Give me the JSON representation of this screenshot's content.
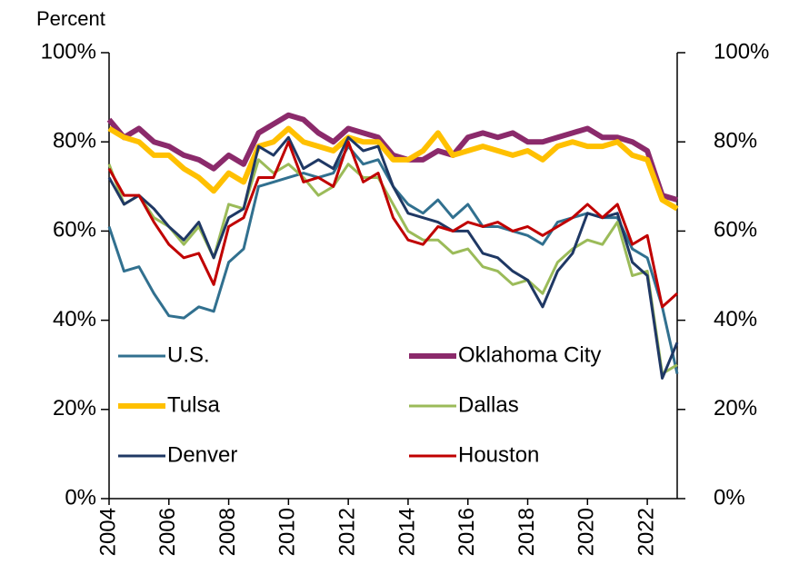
{
  "chart_data": {
    "type": "line",
    "ylabel": "Percent",
    "x": [
      2004,
      2004.5,
      2005,
      2005.5,
      2006,
      2006.5,
      2007,
      2007.5,
      2008,
      2008.5,
      2009,
      2009.5,
      2010,
      2010.5,
      2011,
      2011.5,
      2012,
      2012.5,
      2013,
      2013.5,
      2014,
      2014.5,
      2015,
      2015.5,
      2016,
      2016.5,
      2017,
      2017.5,
      2018,
      2018.5,
      2019,
      2019.5,
      2020,
      2020.5,
      2021,
      2021.5,
      2022,
      2022.5,
      2023
    ],
    "series": [
      {
        "name": "U.S.",
        "color": "#31708f",
        "width": 3,
        "values": [
          61,
          51,
          52,
          46,
          41,
          40.5,
          43,
          42,
          53,
          56,
          70,
          71,
          72,
          73,
          72,
          73,
          79,
          75,
          76,
          70,
          66,
          64,
          67,
          63,
          66,
          61,
          61,
          60,
          59,
          57,
          62,
          63,
          64,
          63,
          63,
          56,
          54,
          43,
          28
        ]
      },
      {
        "name": "Oklahoma City",
        "color": "#8b2a6b",
        "width": 6,
        "values": [
          85,
          81,
          83,
          80,
          79,
          77,
          76,
          74,
          77,
          75,
          82,
          84,
          86,
          85,
          82,
          80,
          83,
          82,
          81,
          77,
          76,
          76,
          78,
          77,
          81,
          82,
          81,
          82,
          80,
          80,
          81,
          82,
          83,
          81,
          81,
          80,
          78,
          68,
          67
        ]
      },
      {
        "name": "Tulsa",
        "color": "#ffc000",
        "width": 6,
        "values": [
          83,
          81,
          80,
          77,
          77,
          74,
          72,
          69,
          73,
          71,
          79,
          80,
          83,
          80,
          79,
          78,
          81,
          80,
          80,
          76,
          76,
          78,
          82,
          77,
          78,
          79,
          78,
          77,
          78,
          76,
          79,
          80,
          79,
          79,
          80,
          77,
          76,
          67,
          65
        ]
      },
      {
        "name": "Dallas",
        "color": "#9bbb59",
        "width": 3,
        "values": [
          75,
          66,
          68,
          63,
          61,
          57,
          61,
          54,
          66,
          65,
          76,
          73,
          75,
          72,
          68,
          70,
          75,
          72,
          72,
          66,
          60,
          58,
          58,
          55,
          56,
          52,
          51,
          48,
          49,
          46,
          53,
          56,
          58,
          57,
          62,
          50,
          51,
          28,
          30
        ]
      },
      {
        "name": "Denver",
        "color": "#1f3864",
        "width": 3,
        "values": [
          72,
          66,
          68,
          65,
          61,
          58,
          62,
          54,
          63,
          65,
          79,
          77,
          81,
          74,
          76,
          74,
          81,
          78,
          79,
          70,
          64,
          63,
          62,
          60,
          60,
          55,
          54,
          51,
          49,
          43,
          51,
          55,
          64,
          63,
          64,
          53,
          50,
          27,
          35
        ]
      },
      {
        "name": "Houston",
        "color": "#c00000",
        "width": 3,
        "values": [
          74,
          68,
          68,
          62,
          57,
          54,
          55,
          48,
          61,
          63,
          72,
          72,
          80,
          71,
          72,
          70,
          80,
          71,
          73,
          63,
          58,
          57,
          61,
          60,
          62,
          61,
          62,
          60,
          61,
          59,
          61,
          63,
          66,
          63,
          66,
          57,
          59,
          43,
          46
        ]
      }
    ],
    "xlim": [
      2004,
      2023
    ],
    "xticks": [
      2004,
      2006,
      2008,
      2010,
      2012,
      2014,
      2016,
      2018,
      2020,
      2022
    ],
    "ylim": [
      0,
      100
    ],
    "yticks": [
      {
        "value": 0,
        "label": "0%"
      },
      {
        "value": 20,
        "label": "20%"
      },
      {
        "value": 40,
        "label": "40%"
      },
      {
        "value": 60,
        "label": "60%"
      },
      {
        "value": 80,
        "label": "80%"
      },
      {
        "value": 100,
        "label": "100%"
      }
    ],
    "y2lim": [
      0,
      100
    ],
    "y2ticks": [
      {
        "value": 0,
        "label": "0%"
      },
      {
        "value": 20,
        "label": "20%"
      },
      {
        "value": 40,
        "label": "40%"
      },
      {
        "value": 60,
        "label": "60%"
      },
      {
        "value": 80,
        "label": "80%"
      },
      {
        "value": 100,
        "label": "100%"
      }
    ],
    "grid": false,
    "legend": "lower left"
  }
}
